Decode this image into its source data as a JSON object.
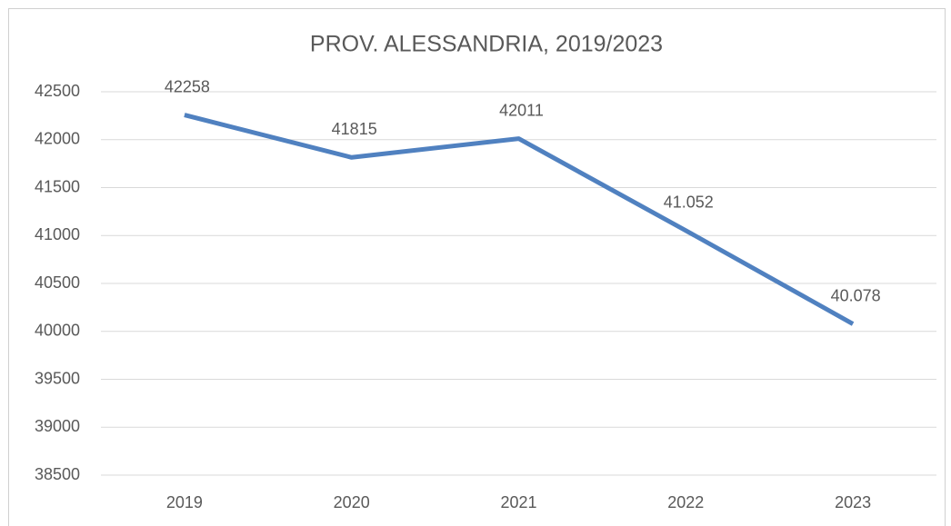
{
  "chart_data": {
    "type": "line",
    "title": "PROV. ALESSANDRIA, 2019/2023",
    "categories": [
      "2019",
      "2020",
      "2021",
      "2022",
      "2023"
    ],
    "values": [
      42258,
      41815,
      42011,
      41052,
      40078
    ],
    "value_labels": [
      "42258",
      "41815",
      "42011",
      "41.052",
      "40.078"
    ],
    "color": "#5081c0",
    "ylim": [
      38500,
      42500
    ],
    "yticks": [
      38500,
      39000,
      39500,
      40000,
      40500,
      41000,
      41500,
      42000,
      42500
    ],
    "grid": true
  }
}
